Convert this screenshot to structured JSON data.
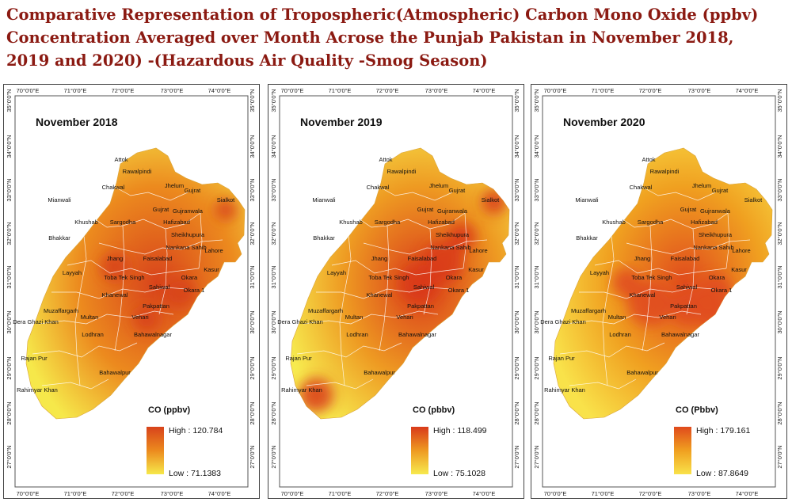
{
  "title": "Comparative Representation of Tropospheric(Atmospheric) Carbon Mono Oxide (ppbv) Concentration Averaged over Month Acrose the Punjab Pakistan in November 2018, 2019 and 2020) -(Hazardous Air Quality -Smog Season)",
  "title_lines": [
    "Comparative Representation of Tropospheric(Atmospheric) Carbon Mono Oxide (ppbv)",
    "Concentration Averaged over Month Acrose the Punjab Pakistan in November 2018,",
    "2019 and 2020) -(Hazardous Air Quality -Smog Season)"
  ],
  "lon_ticks": [
    "70°0'0\"E",
    "71°0'0\"E",
    "72°0'0\"E",
    "73°0'0\"E",
    "74°0'0\"E"
  ],
  "lat_ticks": [
    "35°0'0\"N",
    "34°0'0\"N",
    "33°0'0\"N",
    "32°0'0\"N",
    "31°0'0\"N",
    "30°0'0\"N",
    "29°0'0\"N",
    "28°0'0\"N",
    "27°0'0\"N"
  ],
  "cities": [
    "Attok",
    "Rawalpindi",
    "Chakwal",
    "Jhelum",
    "Mianwali",
    "Gujrat",
    "Sialkot",
    "Gujrat",
    "Gujranwala",
    "Khushab",
    "Sargodha",
    "Hafizabad",
    "Sheikhupura",
    "Bhakkar",
    "Nankana Sahib",
    "Lahore",
    "Jhang",
    "Faisalabad",
    "Layyah",
    "Toba Tek Singh",
    "Okara",
    "Kasur",
    "Sahiwal",
    "Khanewal",
    "Okara 1",
    "Muzaffargarh",
    "Pakpattan",
    "Dera Ghazi Khan",
    "Multan",
    "Vehari",
    "Lodhran",
    "Bahawalnagar",
    "Rajan Pur",
    "Bahawalpur",
    "Rahimyar Khan"
  ],
  "panels": [
    {
      "month": "November 2018",
      "legend_title": "CO (ppbv)",
      "high": "High : 120.784",
      "low": "Low : 71.1383",
      "colors": {
        "low": "#f6e84a",
        "mid": "#ec8a1e",
        "high": "#d8431b"
      }
    },
    {
      "month": "November 2019",
      "legend_title": "CO (pbbv)",
      "high": "High : 118.499",
      "low": "Low : 75.1028",
      "colors": {
        "low": "#f7ea4e",
        "mid": "#ee9a22",
        "high": "#d93a1a"
      }
    },
    {
      "month": "November 2020",
      "legend_title": "CO (Pbbv)",
      "high": "High : 179.161",
      "low": "Low : 87.8649",
      "colors": {
        "low": "#f9e24a",
        "mid": "#f0a020",
        "high": "#e04a1c"
      }
    }
  ]
}
